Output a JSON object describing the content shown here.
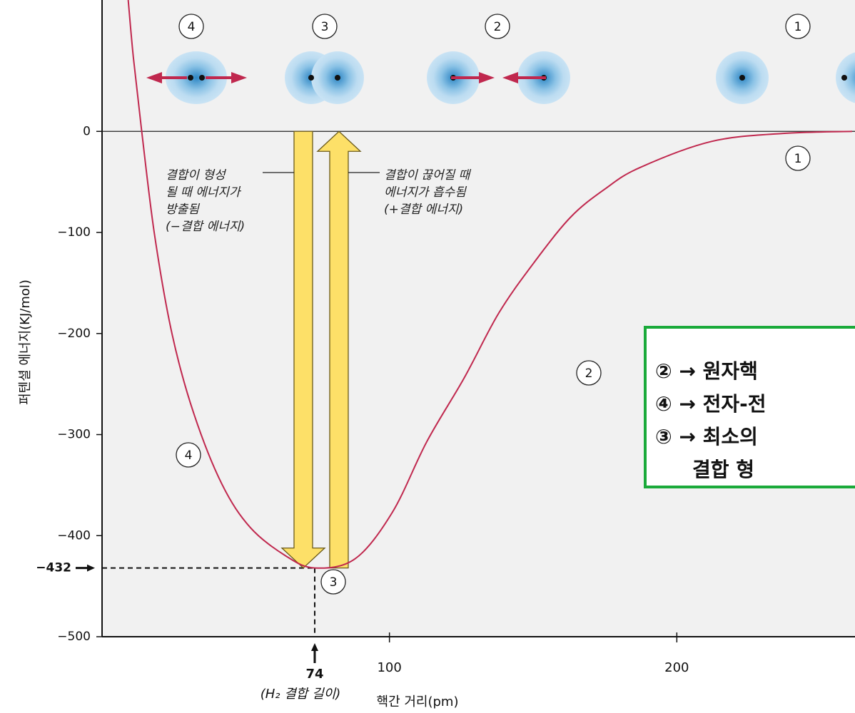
{
  "chart_data": {
    "type": "line",
    "x_label": "핵간 거리(pm)",
    "y_label": "퍼텐셜 에너지(KJ/mol)",
    "series": [
      {
        "color": "#c0284e",
        "x": [
          9.1,
          10.9,
          13.8,
          18.3,
          24.4,
          31.9,
          41.7,
          51.6,
          63.9,
          74,
          88,
          101,
          113,
          126,
          138,
          150,
          163,
          175,
          187,
          212,
          237,
          261
        ],
        "values": [
          130,
          73,
          0,
          -103,
          -201,
          -279,
          -349,
          -392,
          -420,
          -432,
          -423,
          -377,
          -307,
          -244,
          -180,
          -131,
          -85,
          -57,
          -36,
          -10,
          -2,
          0
        ]
      }
    ],
    "xlim": [
      0,
      262
    ],
    "xticks": [
      100,
      200
    ],
    "ylim": [
      -500,
      130
    ],
    "yticks": [
      0,
      {
        "value": -100,
        "label": "−100"
      },
      {
        "value": -200,
        "label": "−200"
      },
      {
        "value": -300,
        "label": "−300"
      },
      {
        "value": -400,
        "label": "−400"
      },
      {
        "value": -500,
        "label": "−500"
      }
    ],
    "minimum": {
      "x": 74,
      "y": {
        "value": -432,
        "label": "−432"
      },
      "x_note": "(H₂ 결합 길이)"
    },
    "stage_labels": [
      "4",
      "3",
      "2",
      "1"
    ],
    "curve_labels": [
      "1",
      "2",
      "3",
      "4"
    ],
    "release_note": [
      "결합이 형성",
      "될 때 에너지가",
      "방출됨",
      "(−결합 에너지)"
    ],
    "absorb_note": [
      "결합이 끊어질 때",
      "에너지가 흡수됨",
      "(+결합 에너지)"
    ],
    "box_lines": [
      "② → 원자핵",
      "④ → 전자-전",
      "③ → 최소의",
      "결합 형"
    ]
  }
}
